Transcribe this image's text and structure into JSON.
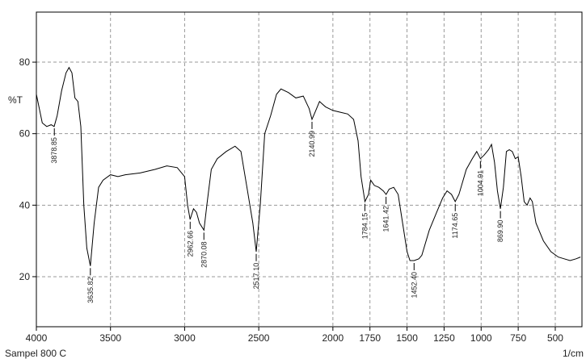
{
  "chart_data": {
    "type": "line",
    "y_label": "%T",
    "x_label": "1/cm",
    "caption": "Sampel 800 C",
    "xlim": [
      4000,
      320
    ],
    "ylim": [
      6,
      94
    ],
    "xticks": [
      4000,
      3500,
      3000,
      2500,
      2000,
      1750,
      1500,
      1250,
      1000,
      750,
      500
    ],
    "yticks": [
      20,
      40,
      60,
      80
    ],
    "grid": true,
    "series": [
      {
        "color": "#000000",
        "x": [
          4000,
          3960,
          3930,
          3900,
          3880,
          3860,
          3830,
          3800,
          3780,
          3760,
          3740,
          3720,
          3700,
          3680,
          3660,
          3636,
          3610,
          3580,
          3550,
          3500,
          3450,
          3400,
          3300,
          3200,
          3120,
          3050,
          3000,
          2980,
          2963,
          2940,
          2920,
          2900,
          2870,
          2850,
          2820,
          2780,
          2720,
          2660,
          2620,
          2580,
          2540,
          2517,
          2490,
          2460,
          2420,
          2380,
          2350,
          2300,
          2250,
          2200,
          2160,
          2141,
          2120,
          2090,
          2050,
          2000,
          1950,
          1900,
          1860,
          1830,
          1810,
          1784,
          1760,
          1745,
          1720,
          1690,
          1660,
          1641,
          1620,
          1590,
          1560,
          1530,
          1500,
          1480,
          1452,
          1420,
          1400,
          1350,
          1300,
          1260,
          1230,
          1200,
          1175,
          1150,
          1100,
          1060,
          1030,
          1005,
          980,
          950,
          930,
          910,
          890,
          870,
          850,
          830,
          810,
          790,
          770,
          750,
          730,
          710,
          690,
          670,
          655,
          630,
          580,
          530,
          480,
          440,
          400,
          360,
          330
        ],
        "values": [
          71,
          63,
          62,
          62.5,
          62,
          65,
          72,
          77,
          78.5,
          77,
          70,
          69,
          62,
          40,
          28,
          23,
          35,
          45,
          47,
          48.5,
          48,
          48.5,
          49,
          50,
          51,
          50.5,
          48,
          40,
          36,
          39,
          38,
          35,
          33,
          40,
          50,
          53,
          55,
          56.5,
          55,
          45,
          35,
          27,
          40,
          60,
          65,
          71,
          72.5,
          71.5,
          70,
          70.5,
          67,
          64,
          66,
          69,
          67.5,
          66.5,
          66,
          65.5,
          64,
          58,
          48,
          41,
          43,
          47,
          45.5,
          45,
          44,
          43,
          44.5,
          45,
          43,
          35,
          27,
          24.5,
          24.5,
          25,
          26,
          33,
          38,
          42,
          44,
          43,
          41,
          43,
          50,
          53,
          55,
          53,
          54,
          55.5,
          57,
          52,
          44,
          39,
          45,
          55,
          55.5,
          55,
          53,
          53.5,
          48,
          41,
          40,
          42,
          41,
          35,
          30,
          27,
          25.5,
          25,
          24.5,
          25,
          25.5
        ]
      }
    ],
    "annotations": [
      {
        "label": "3878.85",
        "x": 3878.85
      },
      {
        "label": "3635.82",
        "x": 3635.82
      },
      {
        "label": "2962.66",
        "x": 2962.66
      },
      {
        "label": "2870.08",
        "x": 2870.08
      },
      {
        "label": "2517.10",
        "x": 2517.1
      },
      {
        "label": "2140.99",
        "x": 2140.99
      },
      {
        "label": "1784.15",
        "x": 1784.15
      },
      {
        "label": "1641.42",
        "x": 1641.42
      },
      {
        "label": "1452.40",
        "x": 1452.4
      },
      {
        "label": "1174.65",
        "x": 1174.65
      },
      {
        "label": "1004.91",
        "x": 1004.91
      },
      {
        "label": "869.90",
        "x": 869.9
      }
    ]
  }
}
